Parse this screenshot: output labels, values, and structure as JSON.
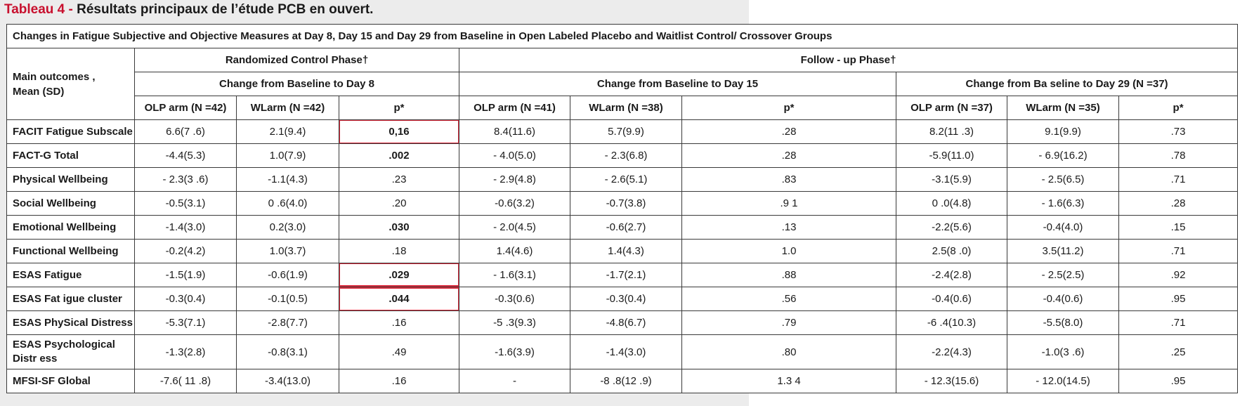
{
  "caption": {
    "label": "Tableau 4 - ",
    "title": "Résultats principaux de l’étude PCB en ouvert."
  },
  "table": {
    "title": "Changes in Fatigue Subjective and Objective Measures at Day 8, Day 15 and Day 29 from Baseline in Open Labeled Placebo and Waitlist Control/ Crossover Groups",
    "main_outcomes_header": "Main outcomes ,\nMean (SD)",
    "phases": {
      "randomized": "Randomized Control Phase†",
      "followup": "Follow - up Phase†"
    },
    "periods": {
      "day8": "Change from Baseline to Day 8",
      "day15": "Change from Baseline to Day 15",
      "day29": "Change from Ba seline to Day 29 (N =37)"
    },
    "columns": [
      "OLP arm (N =42)",
      "WLarm (N =42)",
      "p*",
      "OLP arm (N =41)",
      "WLarm (N =38)",
      "p*",
      "OLP arm (N =37)",
      "WLarm (N =35)",
      "p*"
    ],
    "rows": [
      {
        "outcome": "FACIT Fatigue Subscale",
        "values": [
          "6.6(7 .6)",
          "2.1(9.4)",
          "0,16",
          "8.4(11.6)",
          "5.7(9.9)",
          ".28",
          "8.2(11 .3)",
          "9.1(9.9)",
          ".73"
        ]
      },
      {
        "outcome": "FACT-G Total",
        "values": [
          "-4.4(5.3)",
          "1.0(7.9)",
          ".002",
          "- 4.0(5.0)",
          "- 2.3(6.8)",
          ".28",
          "-5.9(11.0)",
          "- 6.9(16.2)",
          ".78"
        ]
      },
      {
        "outcome": "Physical Wellbeing",
        "values": [
          "- 2.3(3 .6)",
          "-1.1(4.3)",
          ".23",
          "- 2.9(4.8)",
          "- 2.6(5.1)",
          ".83",
          "-3.1(5.9)",
          "- 2.5(6.5)",
          ".71"
        ]
      },
      {
        "outcome": "Social Wellbeing",
        "values": [
          "-0.5(3.1)",
          "0 .6(4.0)",
          ".20",
          "-0.6(3.2)",
          "-0.7(3.8)",
          ".9 1",
          "0 .0(4.8)",
          "- 1.6(6.3)",
          ".28"
        ]
      },
      {
        "outcome": "Emotional Wellbeing",
        "values": [
          "-1.4(3.0)",
          "0.2(3.0)",
          ".030",
          "- 2.0(4.5)",
          "-0.6(2.7)",
          ".13",
          "-2.2(5.6)",
          "-0.4(4.0)",
          ".15"
        ]
      },
      {
        "outcome": "Functional  Wellbeing",
        "values": [
          "-0.2(4.2)",
          "1.0(3.7)",
          ".18",
          "1.4(4.6)",
          "1.4(4.3)",
          "1.0",
          "2.5(8 .0)",
          "3.5(11.2)",
          ".71"
        ]
      },
      {
        "outcome": "ESAS Fatigue",
        "values": [
          "-1.5(1.9)",
          "-0.6(1.9)",
          ".029",
          "- 1.6(3.1)",
          "-1.7(2.1)",
          ".88",
          "-2.4(2.8)",
          "- 2.5(2.5)",
          ".92"
        ]
      },
      {
        "outcome": "ESAS Fat igue cluster",
        "values": [
          "-0.3(0.4)",
          "-0.1(0.5)",
          ".044",
          "-0.3(0.6)",
          "-0.3(0.4)",
          ".56",
          "-0.4(0.6)",
          "-0.4(0.6)",
          ".95"
        ]
      },
      {
        "outcome": "ESAS PhySical Distress",
        "values": [
          "-5.3(7.1)",
          "-2.8(7.7)",
          ".16",
          "-5 .3(9.3)",
          "-4.8(6.7)",
          ".79",
          "-6 .4(10.3)",
          "-5.5(8.0)",
          ".71"
        ]
      },
      {
        "outcome": "ESAS Psychological Distr ess",
        "values": [
          "-1.3(2.8)",
          "-0.8(3.1)",
          ".49",
          "-1.6(3.9)",
          "-1.4(3.0)",
          ".80",
          "-2.2(4.3)",
          "-1.0(3 .6)",
          ".25"
        ]
      },
      {
        "outcome": "MFSI-SF Global",
        "values": [
          "-7.6( 11 .8)",
          "-3.4(13.0)",
          ".16",
          "-",
          "-8 .8(12 .9)",
          "1.3 4",
          "- 12.3(15.6)",
          "- 12.0(14.5)",
          ".95"
        ]
      }
    ],
    "highlight_color": "#d9283a"
  }
}
